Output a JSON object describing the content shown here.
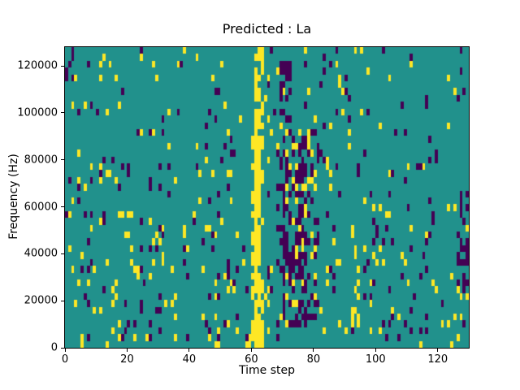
{
  "chart_data": {
    "type": "heatmap",
    "title": "Predicted : La",
    "xlabel": "Time step",
    "ylabel": "Frequency (Hz)",
    "xlim": [
      0,
      130
    ],
    "ylim": [
      0,
      128000
    ],
    "x_ticks": [
      0,
      20,
      40,
      60,
      80,
      100,
      120
    ],
    "y_ticks": [
      0,
      20000,
      40000,
      60000,
      80000,
      100000,
      120000
    ],
    "legend": "none",
    "grid_lines": "off",
    "grid": {
      "cols": 130,
      "rows": 44,
      "origin": "bottom-left",
      "hz_per_row": 2909
    },
    "colormap": {
      "name": "viridis-ternary",
      "mid_teal": "#21918c",
      "high_yellow": "#fde725",
      "low_purple": "#440154"
    },
    "value_meaning": {
      "0": "mid (teal)",
      "1": "high (yellow)",
      "2": "low (purple)"
    },
    "noise_seed": 1337,
    "noise_regions": [
      {
        "cols": [
          0,
          58
        ],
        "rows": [
          0,
          19
        ],
        "p_yellow": 0.06,
        "p_purple": 0.055
      },
      {
        "cols": [
          0,
          58
        ],
        "rows": [
          20,
          43
        ],
        "p_yellow": 0.027,
        "p_purple": 0.033
      },
      {
        "cols": [
          64,
          95
        ],
        "rows": [
          0,
          43
        ],
        "p_yellow": 0.05,
        "p_purple": 0.04
      },
      {
        "cols": [
          96,
          129
        ],
        "rows": [
          0,
          21
        ],
        "p_yellow": 0.055,
        "p_purple": 0.045
      },
      {
        "cols": [
          96,
          129
        ],
        "rows": [
          22,
          43
        ],
        "p_yellow": 0.018,
        "p_purple": 0.02
      }
    ],
    "features": [
      {
        "name": "yellow-band-bottom-blob",
        "cols": [
          59,
          63
        ],
        "rows": [
          0,
          3
        ],
        "value": 1,
        "prob": 0.75
      },
      {
        "name": "yellow-band-core",
        "cols": [
          61,
          62
        ],
        "rows": [
          0,
          33
        ],
        "value": 1,
        "prob": 0.93
      },
      {
        "name": "yellow-band-fringe-left",
        "cols": [
          60,
          60
        ],
        "rows": [
          0,
          33
        ],
        "value": 1,
        "prob": 0.35
      },
      {
        "name": "yellow-band-fringe-right",
        "cols": [
          63,
          63
        ],
        "rows": [
          0,
          33
        ],
        "value": 1,
        "prob": 0.3
      },
      {
        "name": "yellow-band-top-patchy",
        "cols": [
          61,
          63
        ],
        "rows": [
          34,
          43
        ],
        "value": 1,
        "prob": 0.5
      },
      {
        "name": "purple-cluster-core",
        "cols": [
          70,
          77
        ],
        "rows": [
          3,
          31
        ],
        "value": 2,
        "prob": 0.42
      },
      {
        "name": "purple-cluster-fringe-left",
        "cols": [
          68,
          69
        ],
        "rows": [
          2,
          31
        ],
        "value": 2,
        "prob": 0.22
      },
      {
        "name": "purple-cluster-fringe-right",
        "cols": [
          78,
          81
        ],
        "rows": [
          3,
          31
        ],
        "value": 2,
        "prob": 0.2
      },
      {
        "name": "purple-cluster-top",
        "cols": [
          69,
          72
        ],
        "rows": [
          33,
          41
        ],
        "value": 2,
        "prob": 0.4
      },
      {
        "name": "purple-cluster-yellow-specks",
        "cols": [
          71,
          80
        ],
        "rows": [
          3,
          31
        ],
        "value": 1,
        "prob": 0.1
      },
      {
        "name": "yellow-run-mid-right",
        "cols": [
          92,
          94
        ],
        "rows": [
          2,
          12
        ],
        "value": 1,
        "prob": 0.3
      },
      {
        "name": "right-edge-purple-cluster",
        "cols": [
          126,
          129
        ],
        "rows": [
          9,
          16
        ],
        "value": 2,
        "prob": 0.55
      },
      {
        "name": "right-edge-purple-upper",
        "cols": [
          127,
          129
        ],
        "rows": [
          18,
          22
        ],
        "value": 2,
        "prob": 0.3
      },
      {
        "name": "top-left-purple-blob",
        "cols": [
          0,
          2
        ],
        "rows": [
          39,
          43
        ],
        "value": 2,
        "prob": 0.5
      }
    ]
  }
}
